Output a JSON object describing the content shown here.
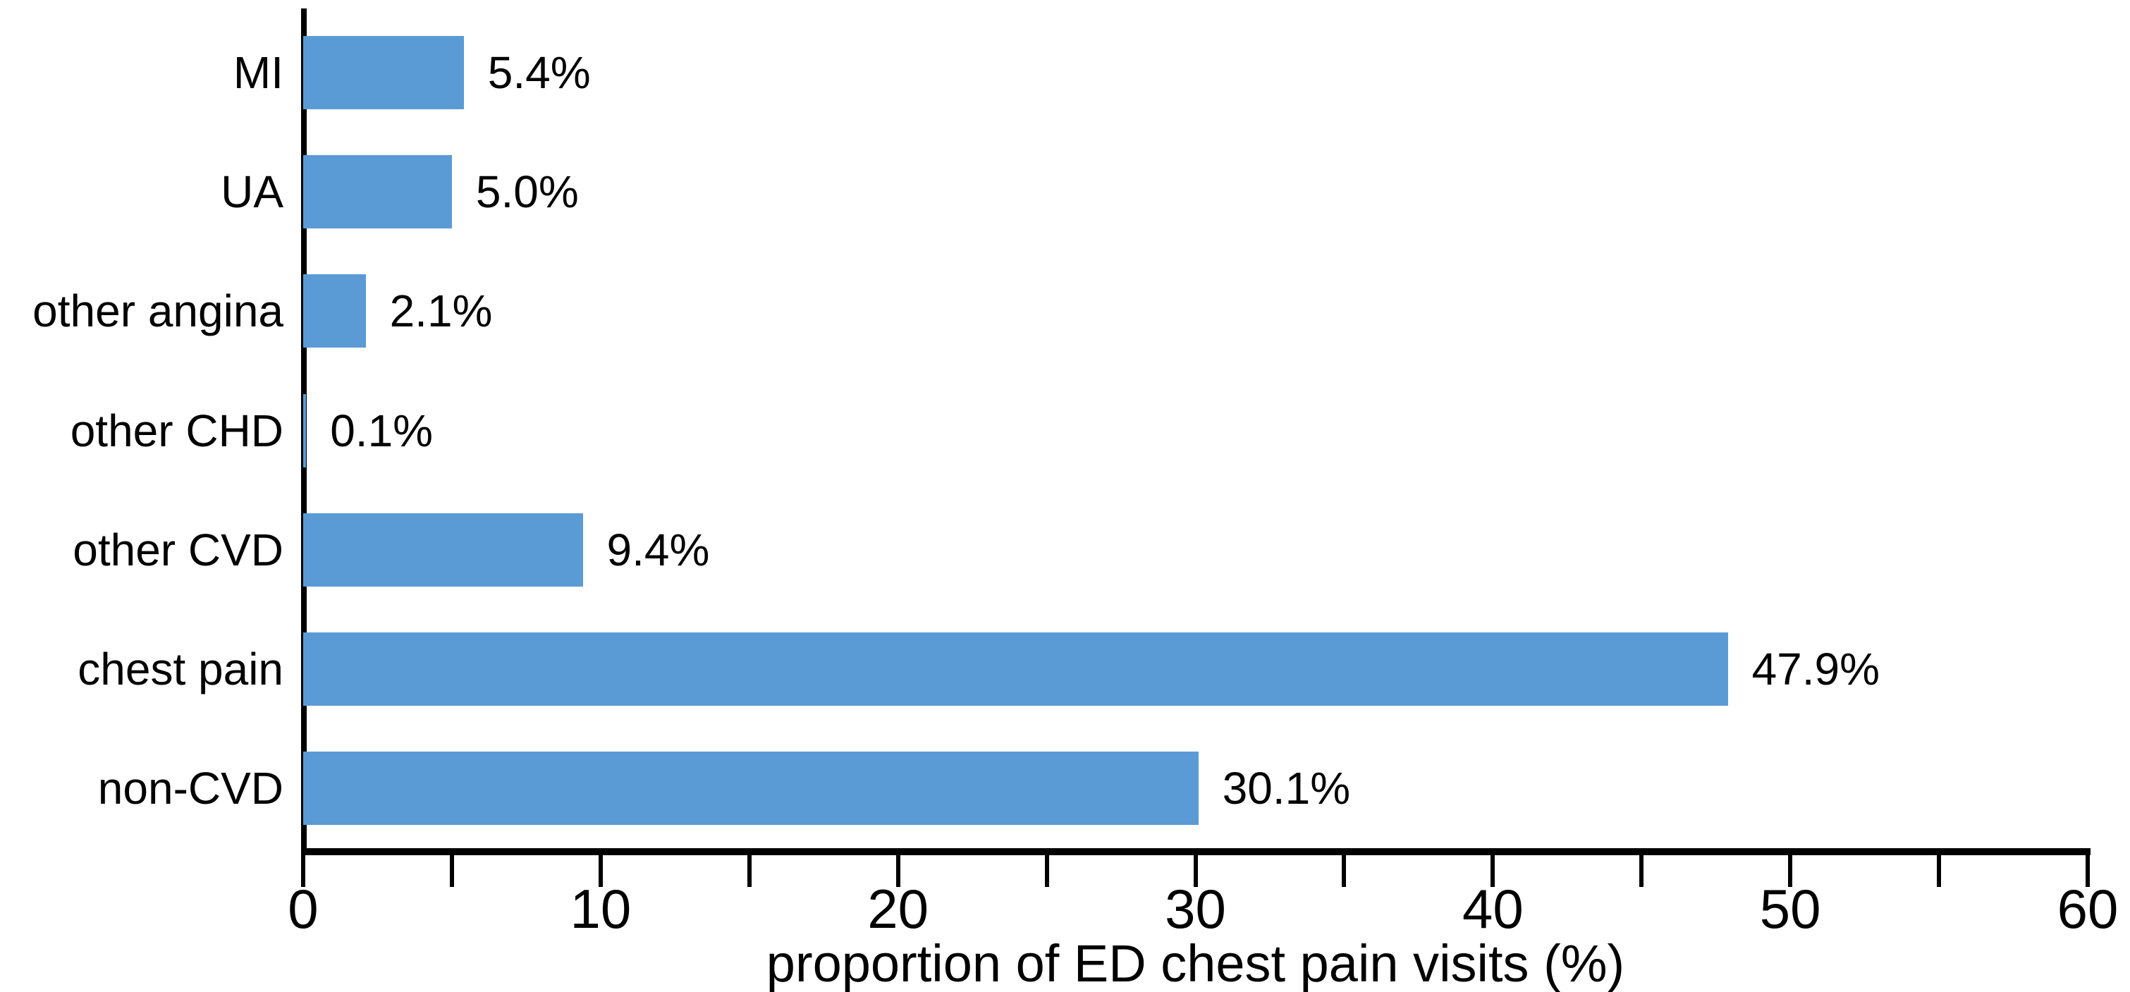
{
  "figure": {
    "background": "#ffffff",
    "axis_color": "#000000",
    "text_color": "#000000"
  },
  "chart_data": {
    "type": "bar",
    "orientation": "horizontal",
    "title": "",
    "categories": [
      "MI",
      "UA",
      "other angina",
      "other CHD",
      "other CVD",
      "chest pain",
      "non-CVD"
    ],
    "values": [
      5.4,
      5.0,
      2.1,
      0.1,
      9.4,
      47.9,
      30.1
    ],
    "data_labels": [
      "5.4%",
      "5.0%",
      "2.1%",
      "0.1%",
      "9.4%",
      "47.9%",
      "30.1%"
    ],
    "xlabel": "proportion of ED chest pain visits (%)",
    "ylabel": "",
    "xlim": [
      0,
      60
    ],
    "xticks_major": [
      0,
      10,
      20,
      30,
      40,
      50,
      60
    ],
    "xtick_minor_step": 5,
    "grid": false,
    "legend": false,
    "bar_color": "#5B9BD5"
  }
}
